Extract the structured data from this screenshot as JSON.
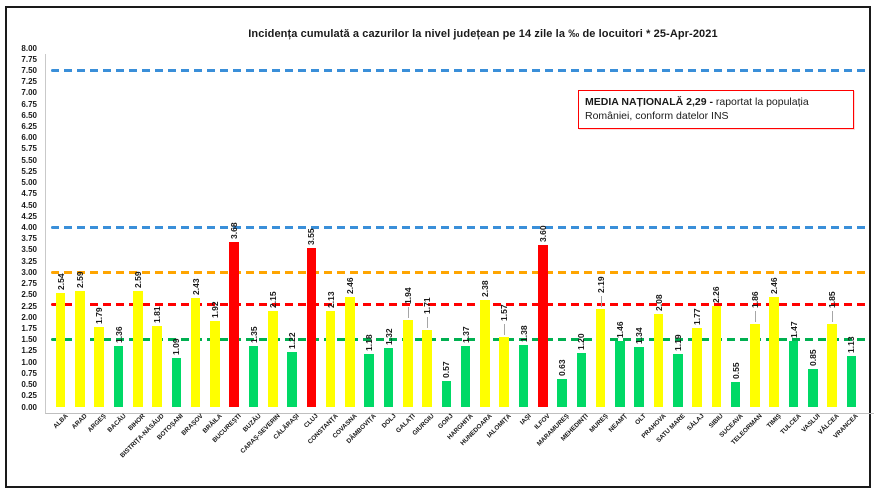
{
  "chart_data": {
    "type": "bar",
    "title": "Incidența cumulată a cazurilor la nivel județean pe 14 zile la ‰ de locuitori *   25-Apr-2021",
    "xlabel": "",
    "ylabel": "",
    "ylim": [
      0,
      8
    ],
    "ytick_step": 0.25,
    "ytick_decimals": 2,
    "grid": false,
    "legend_position": "none",
    "value_label_decimals": 2,
    "categories": [
      "ALBA",
      "ARAD",
      "ARGEȘ",
      "BACĂU",
      "BIHOR",
      "BISTRIȚA-NĂSĂUD",
      "BOTOȘANI",
      "BRAȘOV",
      "BRĂILA",
      "BUCUREȘTI",
      "BUZĂU",
      "CARAȘ-SEVERIN",
      "CĂLĂRAȘI",
      "CLUJ",
      "CONSTANȚA",
      "COVASNA",
      "DÂMBOVIȚA",
      "DOLJ",
      "GALAȚI",
      "GIURGIU",
      "GORJ",
      "HARGHITA",
      "HUNEDOARA",
      "IALOMIȚA",
      "IAȘI",
      "ILFOV",
      "MARAMUREȘ",
      "MEHEDINȚI",
      "MUREȘ",
      "NEAMȚ",
      "OLT",
      "PRAHOVA",
      "SATU MARE",
      "SĂLAJ",
      "SIBIU",
      "SUCEAVA",
      "TELEORMAN",
      "TIMIȘ",
      "TULCEA",
      "VASLUI",
      "VÂLCEA",
      "VRANCEA"
    ],
    "values": [
      2.54,
      2.59,
      1.79,
      1.36,
      2.59,
      1.81,
      1.09,
      2.43,
      1.92,
      3.68,
      1.35,
      2.15,
      1.22,
      3.55,
      2.13,
      2.46,
      1.18,
      1.32,
      1.94,
      1.71,
      0.57,
      1.37,
      2.38,
      1.57,
      1.38,
      3.6,
      0.63,
      1.2,
      2.19,
      1.46,
      1.34,
      2.08,
      1.19,
      1.77,
      2.26,
      0.55,
      1.86,
      2.46,
      1.47,
      0.85,
      1.85,
      1.13
    ],
    "bar_color_rules": [
      {
        "below": 1.5,
        "color": "#00d966",
        "name": "green"
      },
      {
        "below": 3.0,
        "color": "#ffff00",
        "name": "yellow"
      },
      {
        "below": 99.0,
        "color": "#ff0000",
        "name": "red"
      }
    ],
    "reference_lines": [
      {
        "value": 7.5,
        "color": "#3a8fd9",
        "name": "threshold-7-50"
      },
      {
        "value": 4.0,
        "color": "#3a8fd9",
        "name": "threshold-4-00"
      },
      {
        "value": 3.0,
        "color": "#ffa500",
        "name": "threshold-3-00"
      },
      {
        "value": 2.29,
        "color": "#ff0000",
        "name": "national-average-2-29"
      },
      {
        "value": 1.5,
        "color": "#00b050",
        "name": "threshold-1-50"
      }
    ]
  },
  "annotation": {
    "bold_text": "MEDIA NAȚIONALĂ  2,29 -",
    "regular_text": " raportat la populația României, conform datelor INS",
    "border_color": "#ff0000"
  }
}
